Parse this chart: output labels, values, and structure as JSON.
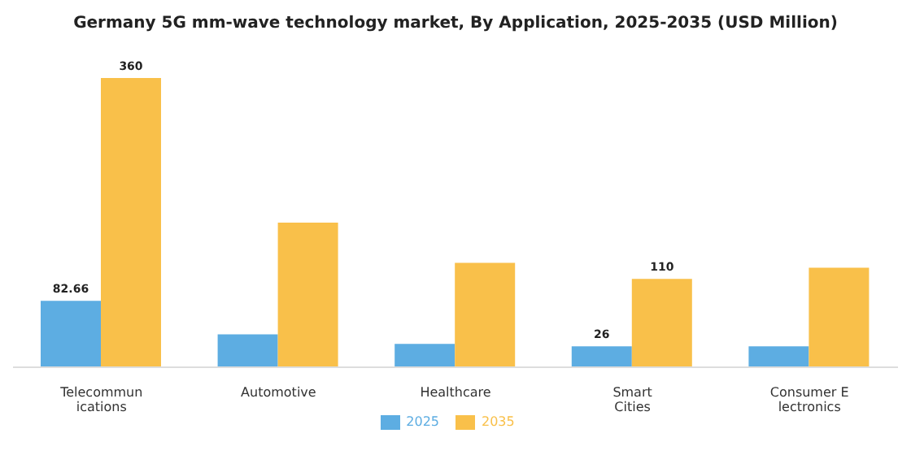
{
  "chart_data": {
    "type": "bar",
    "title": "Germany 5G mm-wave technology market, By Application, 2025-2035 (USD Million)",
    "categories": [
      "Telecommun\nications",
      "Automotive",
      "Healthcare",
      "Smart\nCities",
      "Consumer E\nlectronics"
    ],
    "series": [
      {
        "name": "2025",
        "color": "#5dade2",
        "values": [
          82.66,
          41,
          29,
          26,
          26
        ],
        "value_labels": [
          "82.66",
          null,
          null,
          "26",
          null
        ]
      },
      {
        "name": "2035",
        "color": "#f9c04a",
        "values": [
          360,
          180,
          130,
          110,
          124
        ],
        "value_labels": [
          "360",
          null,
          null,
          "110",
          null
        ]
      }
    ],
    "legend": "bottom",
    "grid": false
  }
}
